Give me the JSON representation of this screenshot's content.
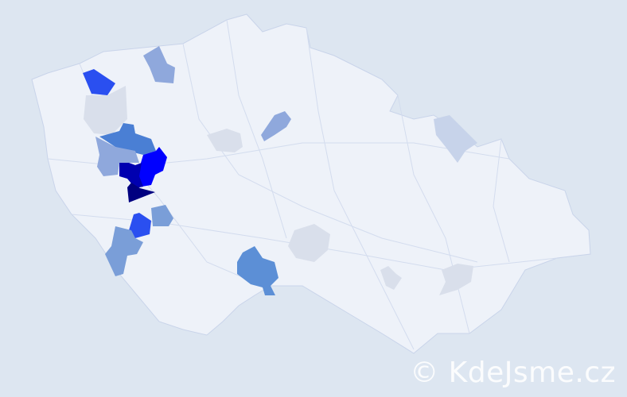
{
  "watermark": "© KdeJsme.cz",
  "colors": {
    "background": "#dde6f1",
    "land": "#eef2f9",
    "border": "#c9d4ea",
    "grey_region": "#d9dfeb",
    "light_blue": "#8fa8dc",
    "mid_blue": "#4a7fd4",
    "bright_blue": "#2a4ff0",
    "pure_blue": "#0000ff",
    "dark_blue": "#0000b0",
    "navy": "#000080"
  },
  "regions": [
    {
      "name": "highlight-north-west",
      "level": "bright_blue"
    },
    {
      "name": "highlight-north",
      "level": "light_blue"
    },
    {
      "name": "highlight-west-grey",
      "level": "grey_region"
    },
    {
      "name": "highlight-west-mid",
      "level": "mid_blue"
    },
    {
      "name": "highlight-west-light",
      "level": "light_blue"
    },
    {
      "name": "highlight-pure-blue",
      "level": "pure_blue"
    },
    {
      "name": "highlight-dark-blue",
      "level": "dark_blue"
    },
    {
      "name": "highlight-navy",
      "level": "navy"
    },
    {
      "name": "highlight-south-west-bright",
      "level": "bright_blue"
    },
    {
      "name": "highlight-south-west-light",
      "level": "light_blue"
    },
    {
      "name": "highlight-south-west-small",
      "level": "light_blue"
    },
    {
      "name": "highlight-south",
      "level": "mid_blue"
    },
    {
      "name": "highlight-central-grey",
      "level": "grey_region"
    },
    {
      "name": "highlight-central-north",
      "level": "light_blue"
    },
    {
      "name": "highlight-vysocina-grey",
      "level": "grey_region"
    },
    {
      "name": "highlight-east-north",
      "level": "grey_region"
    },
    {
      "name": "highlight-brno-grey",
      "level": "grey_region"
    },
    {
      "name": "highlight-south-east-grey",
      "level": "grey_region"
    }
  ]
}
